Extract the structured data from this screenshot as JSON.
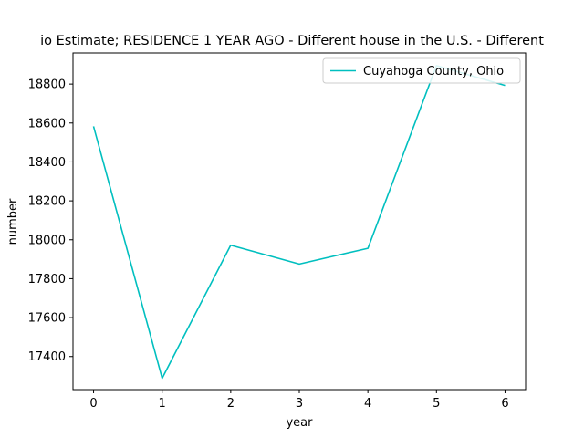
{
  "chart_data": {
    "type": "line",
    "title": "io Estimate; RESIDENCE 1 YEAR AGO - Different house in the U.S. - Different",
    "xlabel": "year",
    "ylabel": "number",
    "x": [
      0,
      1,
      2,
      3,
      4,
      5,
      6
    ],
    "series": [
      {
        "name": "Cuyahoga County, Ohio",
        "color": "#00bfbf",
        "values": [
          18583,
          17288,
          17972,
          17875,
          17956,
          18895,
          18793
        ]
      }
    ],
    "xlim": [
      -0.3,
      6.3
    ],
    "ylim": [
      17230,
      18960
    ],
    "xticks": [
      0,
      1,
      2,
      3,
      4,
      5,
      6
    ],
    "yticks": [
      17400,
      17600,
      17800,
      18000,
      18200,
      18400,
      18600,
      18800
    ],
    "grid": false,
    "legend": "top-right"
  }
}
